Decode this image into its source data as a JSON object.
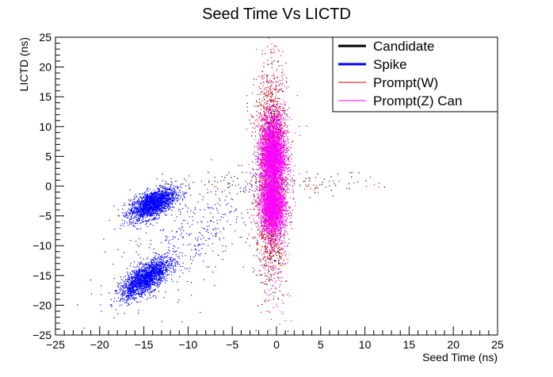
{
  "chart_data": {
    "type": "scatter",
    "title": "Seed Time Vs LICTD",
    "xlabel": "Seed Time (ns)",
    "ylabel": "LICTD (ns)",
    "xlim": [
      -25,
      25
    ],
    "ylim": [
      -25,
      25
    ],
    "x_ticks": [
      "−25",
      "−20",
      "−15",
      "−10",
      "−5",
      "0",
      "5",
      "10",
      "15",
      "20",
      "25"
    ],
    "y_ticks": [
      "−25",
      "−20",
      "−15",
      "−10",
      "−5",
      "0",
      "5",
      "10",
      "15",
      "20",
      "25"
    ],
    "legend_position": "top-right",
    "grid": false,
    "series": [
      {
        "name": "Candidate",
        "color": "#000000",
        "marker": "dot",
        "clusters": [
          {
            "x_center": -0.5,
            "y_center": 0.5,
            "x_spread": 6.0,
            "y_spread": 1.2,
            "n": 90
          },
          {
            "x_center": -0.5,
            "y_center": 7.0,
            "x_spread": 0.8,
            "y_spread": 6.0,
            "n": 220
          },
          {
            "x_center": -0.5,
            "y_center": -9.0,
            "x_spread": 0.8,
            "y_spread": 6.0,
            "n": 160
          }
        ]
      },
      {
        "name": "Spike",
        "color": "#0000ff",
        "marker": "dot",
        "clusters": [
          {
            "x_center": -14.0,
            "y_center": -3.0,
            "x_spread": 1.3,
            "y_spread": 1.1,
            "tilt": 0.6,
            "n": 1900
          },
          {
            "x_center": -14.8,
            "y_center": -15.5,
            "x_spread": 1.4,
            "y_spread": 1.2,
            "tilt": 0.85,
            "n": 1800
          },
          {
            "x_center": -9.0,
            "y_center": -8.0,
            "x_spread": 5.0,
            "y_spread": 4.0,
            "tilt": 0.9,
            "n": 420
          }
        ]
      },
      {
        "name": "Prompt(W)",
        "color": "#cc0000",
        "marker": "dot",
        "clusters": [
          {
            "x_center": -0.6,
            "y_center": 8.0,
            "x_spread": 0.9,
            "y_spread": 6.0,
            "n": 900
          },
          {
            "x_center": -0.6,
            "y_center": -6.0,
            "x_spread": 0.9,
            "y_spread": 5.5,
            "n": 700
          },
          {
            "x_center": -0.6,
            "y_center": 0.2,
            "x_spread": 5.5,
            "y_spread": 0.6,
            "n": 60
          }
        ]
      },
      {
        "name": "Prompt(Z) Can",
        "color": "#ff00ff",
        "marker": "dot",
        "clusters": [
          {
            "x_center": -0.4,
            "y_center": 5.0,
            "x_spread": 0.7,
            "y_spread": 3.2,
            "n": 2600
          },
          {
            "x_center": -0.4,
            "y_center": -3.5,
            "x_spread": 0.7,
            "y_spread": 2.2,
            "n": 2000
          },
          {
            "x_center": -0.4,
            "y_center": 0.0,
            "x_spread": 0.9,
            "y_spread": 10.0,
            "n": 500
          }
        ]
      }
    ]
  }
}
